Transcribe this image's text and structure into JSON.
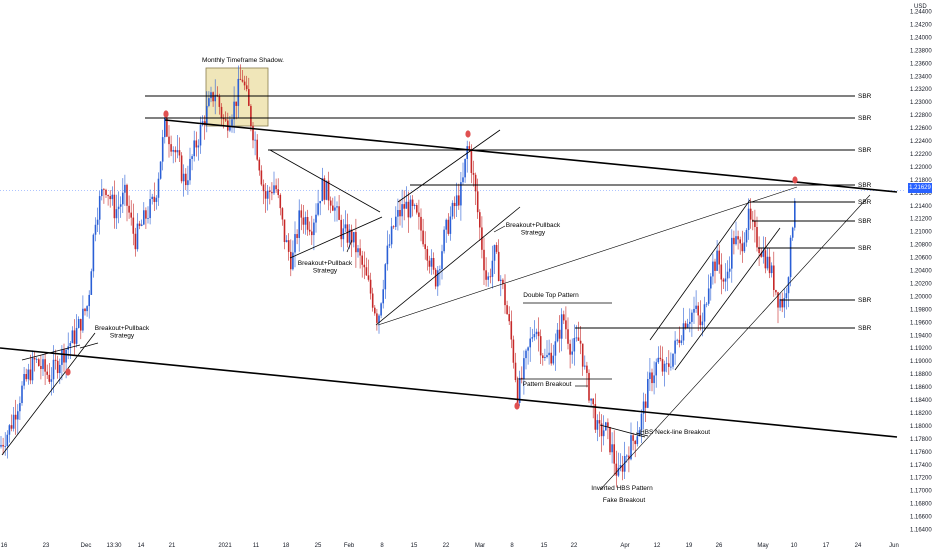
{
  "chart_data": {
    "type": "candlestick",
    "currency": "USD",
    "y_ticks": [
      "1.24400",
      "1.24200",
      "1.24000",
      "1.23800",
      "1.23600",
      "1.23400",
      "1.23200",
      "1.23000",
      "1.22800",
      "1.22600",
      "1.22400",
      "1.22200",
      "1.22000",
      "1.21800",
      "1.21600",
      "1.21400",
      "1.21200",
      "1.21000",
      "1.20800",
      "1.20600",
      "1.20400",
      "1.20200",
      "1.20000",
      "1.19800",
      "1.19600",
      "1.19400",
      "1.19200",
      "1.19000",
      "1.18800",
      "1.18600",
      "1.18400",
      "1.18200",
      "1.18000",
      "1.17800",
      "1.17600",
      "1.17400",
      "1.17200",
      "1.17000",
      "1.16800",
      "1.16600",
      "1.16400"
    ],
    "ylim": [
      1.1632,
      1.2447
    ],
    "x_ticks": [
      "16",
      "23",
      "Dec",
      "13:30",
      "14",
      "21",
      "2021",
      "11",
      "18",
      "25",
      "Feb",
      "8",
      "15",
      "22",
      "Mar",
      "8",
      "15",
      "22",
      "Apr",
      "12",
      "19",
      "26",
      "May",
      "10",
      "17",
      "24",
      "Jun"
    ],
    "current_price": "1.21629",
    "price_path": [
      [
        0,
        1.176
      ],
      [
        10,
        1.179
      ],
      [
        22,
        1.185
      ],
      [
        35,
        1.1895
      ],
      [
        50,
        1.187
      ],
      [
        62,
        1.1905
      ],
      [
        75,
        1.1935
      ],
      [
        88,
        1.1985
      ],
      [
        95,
        1.212
      ],
      [
        105,
        1.2175
      ],
      [
        115,
        1.213
      ],
      [
        125,
        1.2155
      ],
      [
        135,
        1.2085
      ],
      [
        145,
        1.212
      ],
      [
        155,
        1.215
      ],
      [
        165,
        1.2265
      ],
      [
        175,
        1.2225
      ],
      [
        185,
        1.2175
      ],
      [
        195,
        1.223
      ],
      [
        205,
        1.228
      ],
      [
        215,
        1.232
      ],
      [
        225,
        1.2265
      ],
      [
        235,
        1.23
      ],
      [
        242,
        1.2345
      ],
      [
        250,
        1.228
      ],
      [
        258,
        1.222
      ],
      [
        265,
        1.215
      ],
      [
        275,
        1.2175
      ],
      [
        285,
        1.2085
      ],
      [
        292,
        1.205
      ],
      [
        300,
        1.2125
      ],
      [
        312,
        1.211
      ],
      [
        322,
        1.217
      ],
      [
        332,
        1.215
      ],
      [
        342,
        1.2095
      ],
      [
        352,
        1.209
      ],
      [
        362,
        1.2045
      ],
      [
        372,
        1.1995
      ],
      [
        378,
        1.196
      ],
      [
        386,
        1.2055
      ],
      [
        395,
        1.2115
      ],
      [
        405,
        1.214
      ],
      [
        415,
        1.2125
      ],
      [
        425,
        1.2085
      ],
      [
        435,
        1.202
      ],
      [
        445,
        1.2095
      ],
      [
        455,
        1.214
      ],
      [
        462,
        1.2165
      ],
      [
        468,
        1.224
      ],
      [
        474,
        1.2175
      ],
      [
        480,
        1.21
      ],
      [
        487,
        1.2015
      ],
      [
        494,
        1.2065
      ],
      [
        500,
        1.203
      ],
      [
        505,
        1.199
      ],
      [
        512,
        1.192
      ],
      [
        518,
        1.184
      ],
      [
        525,
        1.189
      ],
      [
        535,
        1.1955
      ],
      [
        545,
        1.1895
      ],
      [
        555,
        1.1915
      ],
      [
        563,
        1.1965
      ],
      [
        572,
        1.191
      ],
      [
        580,
        1.193
      ],
      [
        586,
        1.1865
      ],
      [
        592,
        1.183
      ],
      [
        598,
        1.178
      ],
      [
        605,
        1.179
      ],
      [
        612,
        1.1755
      ],
      [
        618,
        1.171
      ],
      [
        625,
        1.1745
      ],
      [
        633,
        1.177
      ],
      [
        640,
        1.1795
      ],
      [
        645,
        1.183
      ],
      [
        650,
        1.1865
      ],
      [
        658,
        1.1895
      ],
      [
        665,
        1.1875
      ],
      [
        675,
        1.1915
      ],
      [
        685,
        1.196
      ],
      [
        695,
        1.1975
      ],
      [
        702,
        1.1945
      ],
      [
        710,
        1.204
      ],
      [
        718,
        1.2055
      ],
      [
        725,
        1.201
      ],
      [
        733,
        1.209
      ],
      [
        740,
        1.207
      ],
      [
        748,
        1.212
      ],
      [
        755,
        1.209
      ],
      [
        762,
        1.207
      ],
      [
        770,
        1.204
      ],
      [
        778,
        1.1995
      ],
      [
        784,
        1.1985
      ],
      [
        790,
        1.206
      ],
      [
        795,
        1.2163
      ]
    ],
    "annotations": [
      {
        "label": "Monthly Timeframe Shadow."
      },
      {
        "label": "Breakout+Pullback\nStrategy"
      },
      {
        "label": "Breakout+Pullback\nStrategy"
      },
      {
        "label": "Breakout+Pullback\nStrategy"
      },
      {
        "label": "Double Top Pattern"
      },
      {
        "label": "Pattern Breakout"
      },
      {
        "label": "HBS Neck-line Breakout"
      },
      {
        "label": "Inverted HBS Pattern"
      },
      {
        "label": "Fake Breakout"
      }
    ],
    "level_labels": [
      "SBR",
      "SBR",
      "SBR",
      "SBR",
      "SBR",
      "SBR",
      "SBR",
      "SBR",
      "SBR"
    ]
  }
}
